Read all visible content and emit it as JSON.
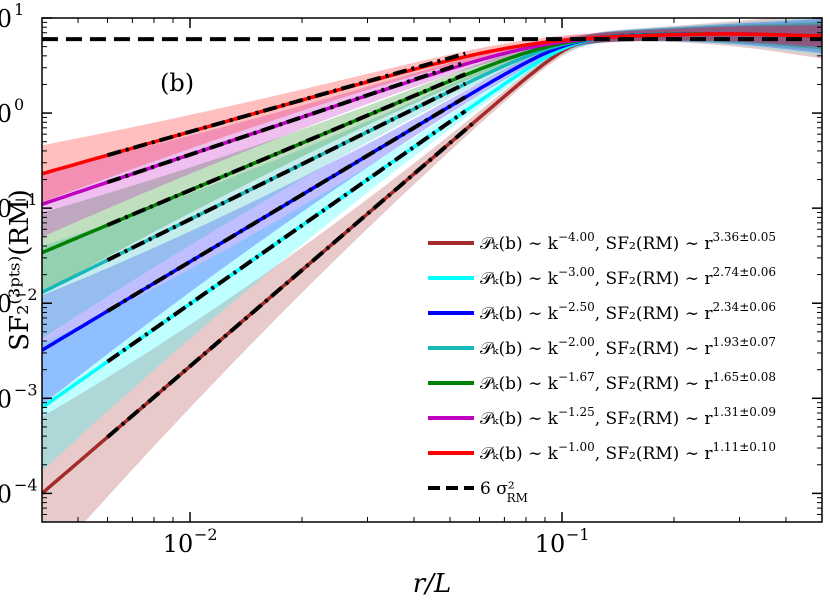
{
  "chart_data": {
    "type": "line",
    "panel_label": "(b)",
    "xlabel": "r/L",
    "ylabel": "SF₂⁽³ᵖᵗˢ⁾(RM)",
    "x_scale": "log",
    "y_scale": "log",
    "xlim": [
      0.004,
      0.5
    ],
    "ylim": [
      5e-05,
      10
    ],
    "x_ticks": [
      {
        "value": 0.01,
        "base": "10",
        "exp": "−2"
      },
      {
        "value": 0.1,
        "base": "10",
        "exp": "−1"
      }
    ],
    "y_ticks": [
      {
        "value": 10,
        "base": "10",
        "exp": "1"
      },
      {
        "value": 1,
        "base": "10",
        "exp": "0"
      },
      {
        "value": 0.1,
        "base": "10",
        "exp": "−1"
      },
      {
        "value": 0.01,
        "base": "10",
        "exp": "−2"
      },
      {
        "value": 0.001,
        "base": "10",
        "exp": "−3"
      },
      {
        "value": 0.0001,
        "base": "10",
        "exp": "−4"
      }
    ],
    "saturation": 6.0,
    "grid": false,
    "legend_position": "lower-right",
    "series": [
      {
        "label": "𝒫ₖ(b) ∼ k",
        "kexp": "−4.00",
        "sfexp": "3.36±0.05",
        "color": "#a52a2a",
        "slope": 3.36,
        "y_at_004": 0.0001,
        "fit_range": [
          0.006,
          0.058
        ]
      },
      {
        "label": "𝒫ₖ(b) ∼ k",
        "kexp": "−3.00",
        "sfexp": "2.74±0.06",
        "color": "#00ffff",
        "slope": 2.74,
        "y_at_004": 0.0008,
        "fit_range": [
          0.006,
          0.055
        ]
      },
      {
        "label": "𝒫ₖ(b) ∼ k",
        "kexp": "−2.50",
        "sfexp": "2.34±0.06",
        "color": "#0000ff",
        "slope": 2.34,
        "y_at_004": 0.0032,
        "fit_range": [
          0.006,
          0.055
        ]
      },
      {
        "label": "𝒫ₖ(b) ∼ k",
        "kexp": "−2.00",
        "sfexp": "1.93±0.07",
        "color": "#17b8b8",
        "slope": 1.93,
        "y_at_004": 0.013,
        "fit_range": [
          0.006,
          0.055
        ]
      },
      {
        "label": "𝒫ₖ(b) ∼ k",
        "kexp": "−1.67",
        "sfexp": "1.65±0.08",
        "color": "#008000",
        "slope": 1.65,
        "y_at_004": 0.034,
        "fit_range": [
          0.006,
          0.055
        ]
      },
      {
        "label": "𝒫ₖ(b) ∼ k",
        "kexp": "−1.25",
        "sfexp": "1.31±0.09",
        "color": "#bf00bf",
        "slope": 1.31,
        "y_at_004": 0.11,
        "fit_range": [
          0.006,
          0.055
        ]
      },
      {
        "label": "𝒫ₖ(b) ∼ k",
        "kexp": "−1.00",
        "sfexp": "1.11±0.10",
        "color": "#ff0000",
        "slope": 1.11,
        "y_at_004": 0.23,
        "fit_range": [
          0.006,
          0.055
        ]
      }
    ],
    "legend_entries": [
      {
        "pre": "𝒫ₖ(b) ∼ k",
        "kexp": "−4.00",
        "mid": ", SF₂(RM) ∼ r",
        "sfexp": "3.36±0.05",
        "color": "#a52a2a"
      },
      {
        "pre": "𝒫ₖ(b) ∼ k",
        "kexp": "−3.00",
        "mid": ", SF₂(RM) ∼ r",
        "sfexp": "2.74±0.06",
        "color": "#00ffff"
      },
      {
        "pre": "𝒫ₖ(b) ∼ k",
        "kexp": "−2.50",
        "mid": ", SF₂(RM) ∼ r",
        "sfexp": "2.34±0.06",
        "color": "#0000ff"
      },
      {
        "pre": "𝒫ₖ(b) ∼ k",
        "kexp": "−2.00",
        "mid": ", SF₂(RM) ∼ r",
        "sfexp": "1.93±0.07",
        "color": "#17b8b8"
      },
      {
        "pre": "𝒫ₖ(b) ∼ k",
        "kexp": "−1.67",
        "mid": ", SF₂(RM) ∼ r",
        "sfexp": "1.65±0.08",
        "color": "#008000"
      },
      {
        "pre": "𝒫ₖ(b) ∼ k",
        "kexp": "−1.25",
        "mid": ", SF₂(RM) ∼ r",
        "sfexp": "1.31±0.09",
        "color": "#bf00bf"
      },
      {
        "pre": "𝒫ₖ(b) ∼ k",
        "kexp": "−1.00",
        "mid": ", SF₂(RM) ∼ r",
        "sfexp": "1.11±0.10",
        "color": "#ff0000"
      }
    ],
    "saturation_label": "6 σ²",
    "saturation_label_sub": "RM"
  }
}
